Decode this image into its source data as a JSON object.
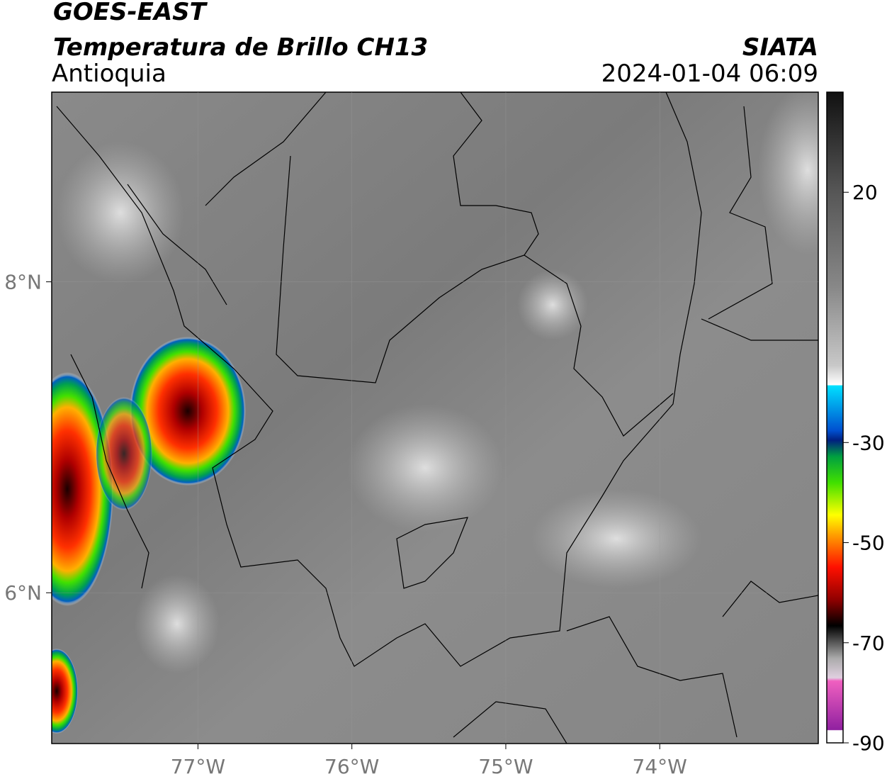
{
  "header": {
    "title": "GOES-EAST",
    "subtitle": "Temperatura de Brillo CH13",
    "region": "Antioquia",
    "source": "SIATA",
    "datetime": "2024-01-04 06:09"
  },
  "map": {
    "xlim": [
      -77.95,
      -72.97
    ],
    "ylim": [
      5.03,
      9.22
    ],
    "xticks": [
      {
        "value": -77,
        "label": "77°W"
      },
      {
        "value": -76,
        "label": "76°W"
      },
      {
        "value": -75,
        "label": "75°W"
      },
      {
        "value": -74,
        "label": "74°W"
      }
    ],
    "yticks": [
      {
        "value": 8,
        "label": "8°N"
      },
      {
        "value": 6,
        "label": "6°N"
      }
    ],
    "grid": true
  },
  "colorbar": {
    "lim": [
      -90,
      40
    ],
    "ticks": [
      20,
      -30,
      -50,
      -70,
      -90
    ]
  }
}
